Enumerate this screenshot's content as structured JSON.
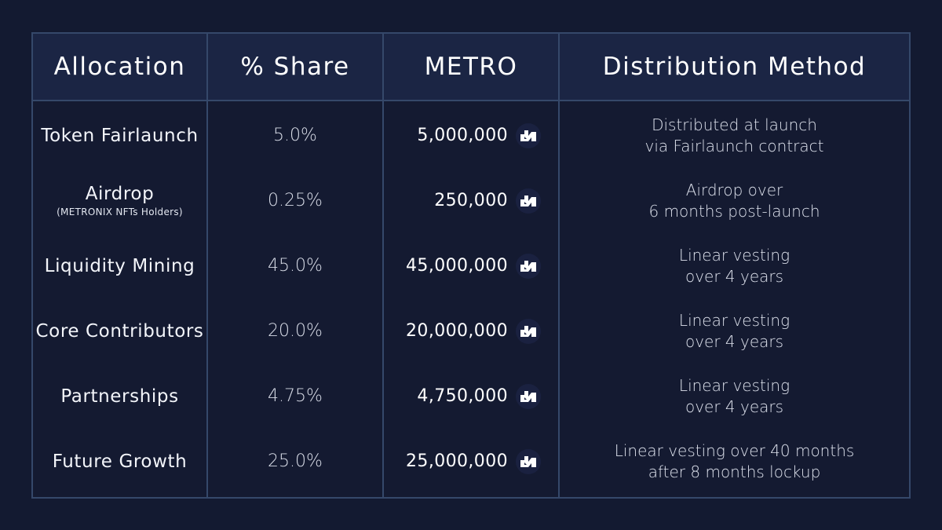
{
  "headers": {
    "allocation": "Allocation",
    "share": "% Share",
    "metro": "METRO",
    "distribution": "Distribution Method"
  },
  "rows": [
    {
      "allocation": "Token Fairlaunch",
      "allocation_sub": "",
      "share": "5.0%",
      "metro": "5,000,000",
      "distribution_line1": "Distributed at launch",
      "distribution_line2": "via Fairlaunch contract"
    },
    {
      "allocation": "Airdrop",
      "allocation_sub": "(METRONIX NFTs Holders)",
      "share": "0.25%",
      "metro": "250,000",
      "distribution_line1": "Airdrop over",
      "distribution_line2": "6 months post-launch"
    },
    {
      "allocation": "Liquidity Mining",
      "allocation_sub": "",
      "share": "45.0%",
      "metro": "45,000,000",
      "distribution_line1": "Linear vesting",
      "distribution_line2": "over 4 years"
    },
    {
      "allocation": "Core Contributors",
      "allocation_sub": "",
      "share": "20.0%",
      "metro": "20,000,000",
      "distribution_line1": "Linear vesting",
      "distribution_line2": "over 4 years"
    },
    {
      "allocation": "Partnerships",
      "allocation_sub": "",
      "share": "4.75%",
      "metro": "4,750,000",
      "distribution_line1": "Linear vesting",
      "distribution_line2": "over 4 years"
    },
    {
      "allocation": "Future Growth",
      "allocation_sub": "",
      "share": "25.0%",
      "metro": "25,000,000",
      "distribution_line1": "Linear vesting over 40 months",
      "distribution_line2": "after 8 months lockup"
    }
  ],
  "icons": {
    "metro_token": "metro-token-icon"
  },
  "colors": {
    "background": "#131a31",
    "header_background": "#1b2544",
    "border": "#35486a",
    "text": "#ffffff"
  }
}
